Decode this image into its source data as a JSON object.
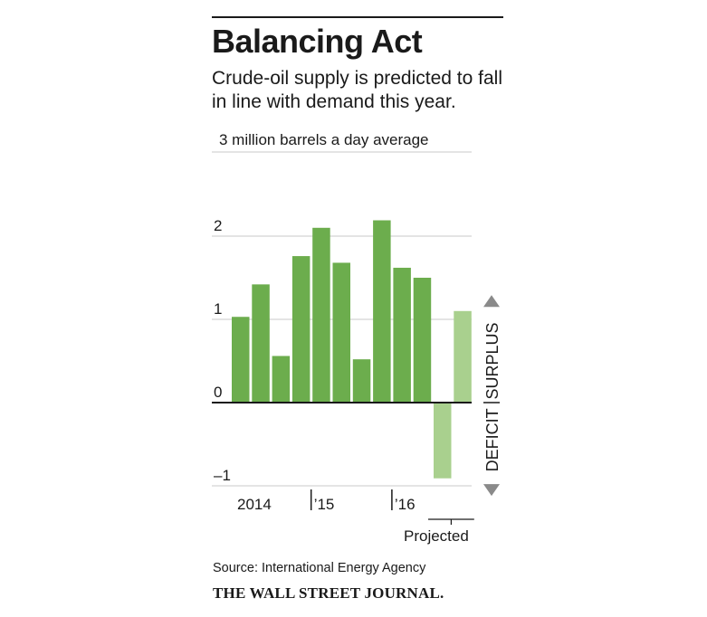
{
  "title": "Balancing Act",
  "subtitle": "Crude-oil supply is predicted to fall in line with demand this year.",
  "source": "Source: International Energy Agency",
  "brand": "THE WALL STREET JOURNAL.",
  "chart_data": {
    "type": "bar",
    "title": "Balancing Act",
    "subtitle": "Crude-oil supply is predicted to fall in line with demand this year.",
    "unit_label": "3 million barrels a day average",
    "ylim": [
      -1,
      3
    ],
    "y_ticks": [
      {
        "value": 2,
        "label": "2"
      },
      {
        "value": 1,
        "label": "1"
      },
      {
        "value": 0,
        "label": "0"
      },
      {
        "value": -1,
        "label": "–1"
      }
    ],
    "x_tick_labels": [
      {
        "label": "2014",
        "after_bar": null
      },
      {
        "label": "’15",
        "after_bar": 4
      },
      {
        "label": "’16",
        "after_bar": 8
      }
    ],
    "bars": [
      {
        "value": 1.03,
        "projected": false
      },
      {
        "value": 1.42,
        "projected": false
      },
      {
        "value": 0.56,
        "projected": false
      },
      {
        "value": 1.76,
        "projected": false
      },
      {
        "value": 2.1,
        "projected": false
      },
      {
        "value": 1.68,
        "projected": false
      },
      {
        "value": 0.52,
        "projected": false
      },
      {
        "value": 2.19,
        "projected": false
      },
      {
        "value": 1.62,
        "projected": false
      },
      {
        "value": 1.5,
        "projected": false
      },
      {
        "value": -0.91,
        "projected": true
      },
      {
        "value": 1.1,
        "projected": true
      }
    ],
    "projected_label": "Projected",
    "side_labels": {
      "surplus": "SURPLUS",
      "deficit": "DEFICIT"
    },
    "grid": true,
    "colors": {
      "actual": "#6cad4d",
      "projected": "#a9d08e",
      "gridline": "#c8c8c8",
      "zero_line": "#1a1a1a",
      "arrow": "#8a8a8a"
    }
  }
}
